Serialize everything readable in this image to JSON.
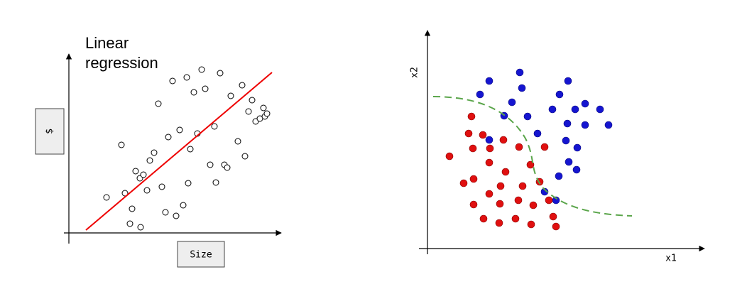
{
  "left_plot": {
    "title": "Linear regression",
    "y_label": "$",
    "x_label": "Size"
  },
  "right_plot": {
    "y_label": "x2",
    "x_label": "x1"
  }
}
